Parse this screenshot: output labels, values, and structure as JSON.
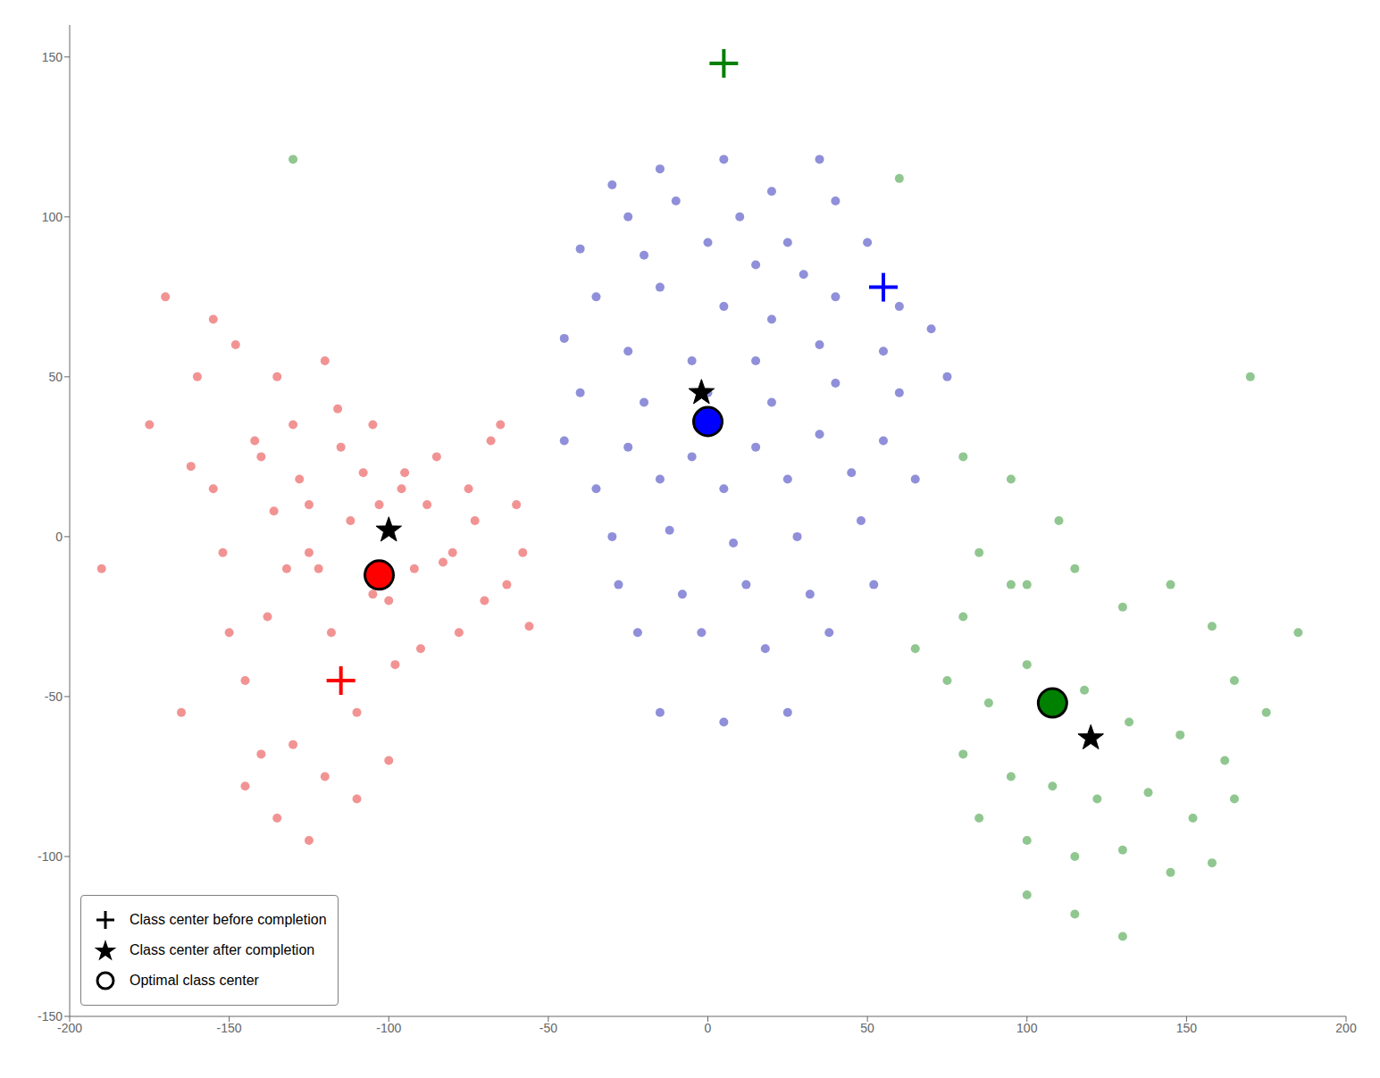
{
  "chart_data": {
    "type": "scatter",
    "xlim": [
      -200,
      200
    ],
    "ylim": [
      -150,
      160
    ],
    "xticks": [
      -200,
      -150,
      -100,
      -50,
      0,
      50,
      100,
      150,
      200
    ],
    "yticks": [
      -150,
      -100,
      -50,
      0,
      50,
      100,
      150
    ],
    "grid": false,
    "legend": "lower left",
    "series": [
      {
        "color": "#F08080",
        "marker": "circle",
        "values": [
          [
            -190,
            -10
          ],
          [
            -175,
            35
          ],
          [
            -170,
            75
          ],
          [
            -165,
            -55
          ],
          [
            -160,
            50
          ],
          [
            -162,
            22
          ],
          [
            -155,
            15
          ],
          [
            -152,
            -5
          ],
          [
            -150,
            -30
          ],
          [
            -148,
            60
          ],
          [
            -145,
            -45
          ],
          [
            -142,
            30
          ],
          [
            -140,
            25
          ],
          [
            -138,
            -25
          ],
          [
            -136,
            8
          ],
          [
            -135,
            50
          ],
          [
            -132,
            -10
          ],
          [
            -130,
            35
          ],
          [
            -130,
            -65
          ],
          [
            -128,
            18
          ],
          [
            -125,
            -5
          ],
          [
            -125,
            10
          ],
          [
            -122,
            -10
          ],
          [
            -120,
            55
          ],
          [
            -118,
            -30
          ],
          [
            -116,
            40
          ],
          [
            -115,
            28
          ],
          [
            -112,
            5
          ],
          [
            -110,
            -55
          ],
          [
            -108,
            20
          ],
          [
            -105,
            -18
          ],
          [
            -105,
            35
          ],
          [
            -103,
            10
          ],
          [
            -100,
            -20
          ],
          [
            -98,
            -40
          ],
          [
            -96,
            15
          ],
          [
            -95,
            20
          ],
          [
            -92,
            -10
          ],
          [
            -90,
            -35
          ],
          [
            -88,
            10
          ],
          [
            -85,
            25
          ],
          [
            -83,
            -8
          ],
          [
            -80,
            -5
          ],
          [
            -78,
            -30
          ],
          [
            -75,
            15
          ],
          [
            -73,
            5
          ],
          [
            -70,
            -20
          ],
          [
            -68,
            30
          ],
          [
            -65,
            35
          ],
          [
            -63,
            -15
          ],
          [
            -60,
            10
          ],
          [
            -58,
            -5
          ],
          [
            -56,
            -28
          ],
          [
            -145,
            -78
          ],
          [
            -135,
            -88
          ],
          [
            -125,
            -95
          ],
          [
            -140,
            -68
          ],
          [
            -120,
            -75
          ],
          [
            -110,
            -82
          ],
          [
            -100,
            -70
          ],
          [
            -155,
            68
          ]
        ]
      },
      {
        "color": "#7B7BD4",
        "marker": "circle",
        "values": [
          [
            -30,
            110
          ],
          [
            -15,
            115
          ],
          [
            5,
            118
          ],
          [
            20,
            108
          ],
          [
            35,
            118
          ],
          [
            -25,
            100
          ],
          [
            -10,
            105
          ],
          [
            10,
            100
          ],
          [
            25,
            92
          ],
          [
            40,
            105
          ],
          [
            -40,
            90
          ],
          [
            -20,
            88
          ],
          [
            0,
            92
          ],
          [
            15,
            85
          ],
          [
            30,
            82
          ],
          [
            50,
            92
          ],
          [
            -35,
            75
          ],
          [
            -15,
            78
          ],
          [
            5,
            72
          ],
          [
            20,
            68
          ],
          [
            40,
            75
          ],
          [
            60,
            72
          ],
          [
            -45,
            62
          ],
          [
            -25,
            58
          ],
          [
            -5,
            55
          ],
          [
            15,
            55
          ],
          [
            35,
            60
          ],
          [
            55,
            58
          ],
          [
            -40,
            45
          ],
          [
            -20,
            42
          ],
          [
            0,
            45
          ],
          [
            20,
            42
          ],
          [
            40,
            48
          ],
          [
            60,
            45
          ],
          [
            -45,
            30
          ],
          [
            -25,
            28
          ],
          [
            -5,
            25
          ],
          [
            15,
            28
          ],
          [
            35,
            32
          ],
          [
            55,
            30
          ],
          [
            -35,
            15
          ],
          [
            -15,
            18
          ],
          [
            5,
            15
          ],
          [
            25,
            18
          ],
          [
            45,
            20
          ],
          [
            65,
            18
          ],
          [
            -30,
            0
          ],
          [
            -12,
            2
          ],
          [
            8,
            -2
          ],
          [
            28,
            0
          ],
          [
            48,
            5
          ],
          [
            -28,
            -15
          ],
          [
            -8,
            -18
          ],
          [
            12,
            -15
          ],
          [
            32,
            -18
          ],
          [
            52,
            -15
          ],
          [
            -22,
            -30
          ],
          [
            -2,
            -30
          ],
          [
            18,
            -35
          ],
          [
            38,
            -30
          ],
          [
            -15,
            -55
          ],
          [
            5,
            -58
          ],
          [
            25,
            -55
          ],
          [
            70,
            65
          ],
          [
            75,
            50
          ]
        ]
      },
      {
        "color": "#7DBD7D",
        "marker": "circle",
        "values": [
          [
            -130,
            118
          ],
          [
            60,
            112
          ],
          [
            170,
            50
          ],
          [
            185,
            -30
          ],
          [
            65,
            -35
          ],
          [
            80,
            -25
          ],
          [
            95,
            -15
          ],
          [
            115,
            -10
          ],
          [
            130,
            -22
          ],
          [
            145,
            -15
          ],
          [
            158,
            -28
          ],
          [
            165,
            -45
          ],
          [
            175,
            -55
          ],
          [
            75,
            -45
          ],
          [
            88,
            -52
          ],
          [
            100,
            -40
          ],
          [
            118,
            -48
          ],
          [
            132,
            -58
          ],
          [
            148,
            -62
          ],
          [
            162,
            -70
          ],
          [
            80,
            -68
          ],
          [
            95,
            -75
          ],
          [
            108,
            -78
          ],
          [
            122,
            -82
          ],
          [
            138,
            -80
          ],
          [
            152,
            -88
          ],
          [
            165,
            -82
          ],
          [
            85,
            -88
          ],
          [
            100,
            -95
          ],
          [
            115,
            -100
          ],
          [
            130,
            -98
          ],
          [
            145,
            -105
          ],
          [
            158,
            -102
          ],
          [
            100,
            -112
          ],
          [
            115,
            -118
          ],
          [
            130,
            -125
          ],
          [
            80,
            25
          ],
          [
            95,
            18
          ],
          [
            110,
            5
          ],
          [
            85,
            -5
          ],
          [
            100,
            -15
          ]
        ]
      },
      {
        "name": "Class center before completion",
        "marker": "plus",
        "colors": [
          "red",
          "blue",
          "green"
        ],
        "values": [
          [
            -115,
            -45
          ],
          [
            55,
            78
          ],
          [
            5,
            148
          ]
        ]
      },
      {
        "name": "Class center after completion",
        "marker": "star",
        "color": "black",
        "values": [
          [
            -100,
            2
          ],
          [
            -2,
            45
          ],
          [
            120,
            -63
          ]
        ]
      },
      {
        "name": "Optimal class center",
        "marker": "circle",
        "colors": [
          "red",
          "blue",
          "green"
        ],
        "values": [
          [
            -103,
            -12
          ],
          [
            0,
            36
          ],
          [
            108,
            -52
          ]
        ]
      }
    ]
  }
}
